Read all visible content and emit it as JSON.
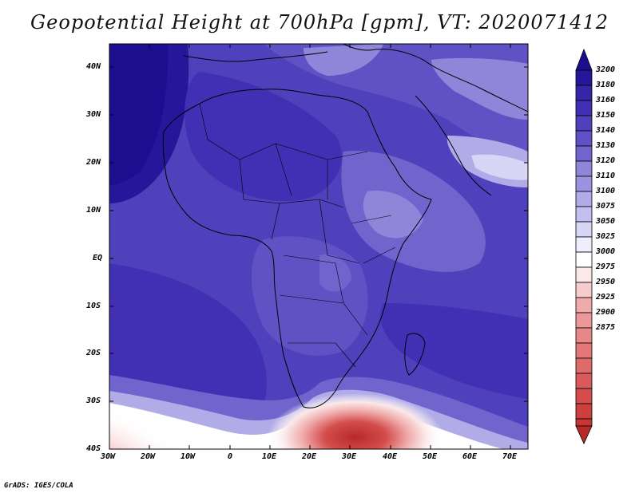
{
  "map": {
    "title": "Geopotential Height at 700hPa [gpm], VT: 2020071412",
    "region": "Africa",
    "y_ticks": [
      "40N",
      "30N",
      "20N",
      "10N",
      "EQ",
      "10S",
      "20S",
      "30S",
      "40S"
    ],
    "x_ticks": [
      "30W",
      "20W",
      "10W",
      "0",
      "10E",
      "20E",
      "30E",
      "40E",
      "50E",
      "60E",
      "70E"
    ],
    "footer": "GrADS: IGES/COLA"
  },
  "colorbar": {
    "levels": [
      "3200",
      "3180",
      "3160",
      "3150",
      "3140",
      "3130",
      "3120",
      "3110",
      "3100",
      "3075",
      "3050",
      "3025",
      "3000",
      "2975",
      "2950",
      "2925",
      "2900",
      "2875"
    ],
    "colors": {
      "top_arrow": "#1b0f8f",
      "c3180": "#26179a",
      "c3160": "#3426a7",
      "c3150": "#4130b3",
      "c3140": "#4f41bb",
      "c3130": "#6052c4",
      "c3120": "#7264cd",
      "c3110": "#8f86da",
      "c3100": "#b1abe8",
      "c3075": "#d9d6f5",
      "c3050": "#fbe8e8",
      "c3025": "#f6cccc",
      "c3000": "#efaaaa",
      "c2975": "#e68888",
      "c2950": "#df6a6a",
      "c2925": "#d44c4c",
      "c2900": "#c73636",
      "bottom_arrow": "#b82a2a"
    }
  }
}
